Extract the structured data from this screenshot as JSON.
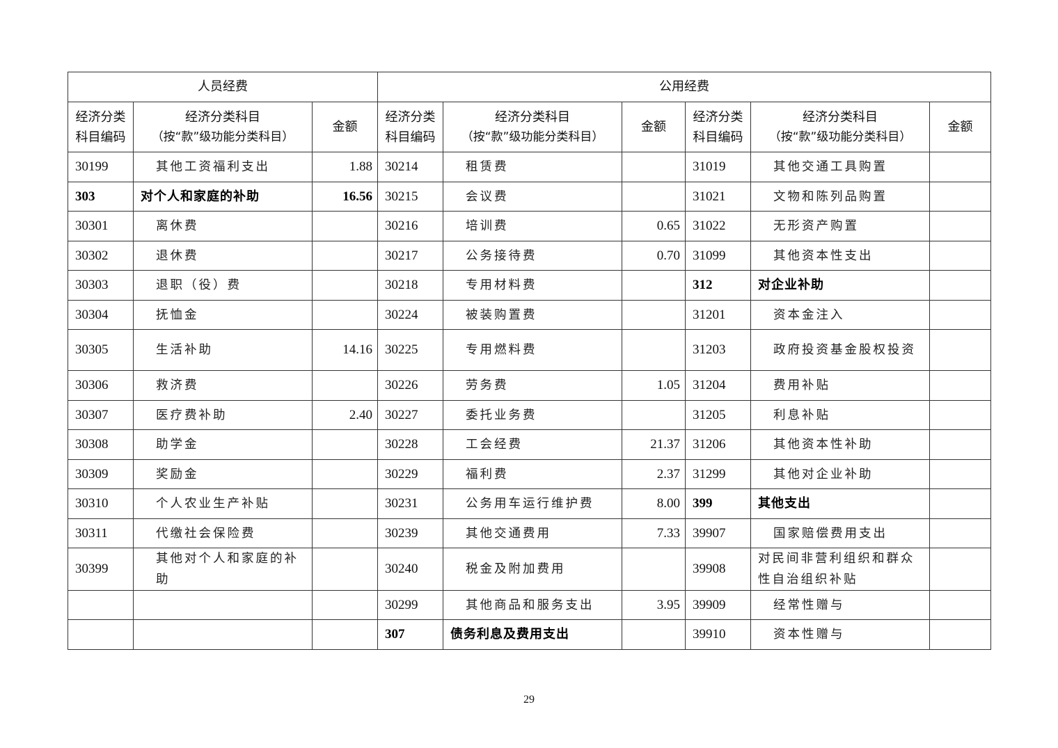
{
  "table": {
    "groups": [
      "人员经费",
      "公用经费"
    ],
    "headers": {
      "code": [
        "经济分类",
        "科目编码"
      ],
      "name": [
        "经济分类科目",
        "（按“款”级功能分类科目）"
      ],
      "amount": "金额"
    },
    "rows": [
      [
        [
          "30199",
          "其他工资福利支出",
          "1.88",
          false
        ],
        [
          "30214",
          "租赁费",
          "",
          false
        ],
        [
          "31019",
          "其他交通工具购置",
          "",
          false
        ]
      ],
      [
        [
          "303",
          "对个人和家庭的补助",
          "16.56",
          true
        ],
        [
          "30215",
          "会议费",
          "",
          false
        ],
        [
          "31021",
          "文物和陈列品购置",
          "",
          false
        ]
      ],
      [
        [
          "30301",
          "离休费",
          "",
          false
        ],
        [
          "30216",
          "培训费",
          "0.65",
          false
        ],
        [
          "31022",
          "无形资产购置",
          "",
          false
        ]
      ],
      [
        [
          "30302",
          "退休费",
          "",
          false
        ],
        [
          "30217",
          "公务接待费",
          "0.70",
          false
        ],
        [
          "31099",
          "其他资本性支出",
          "",
          false
        ]
      ],
      [
        [
          "30303",
          "退职（役）费",
          "",
          false
        ],
        [
          "30218",
          "专用材料费",
          "",
          false
        ],
        [
          "312",
          "对企业补助",
          "",
          true
        ]
      ],
      [
        [
          "30304",
          "抚恤金",
          "",
          false
        ],
        [
          "30224",
          "被装购置费",
          "",
          false
        ],
        [
          "31201",
          "资本金注入",
          "",
          false
        ]
      ],
      [
        [
          "30305",
          "生活补助",
          "14.16",
          false
        ],
        [
          "30225",
          "专用燃料费",
          "",
          false
        ],
        [
          "31203",
          "政府投资基金股权投资",
          "",
          false
        ]
      ],
      [
        [
          "30306",
          "救济费",
          "",
          false
        ],
        [
          "30226",
          "劳务费",
          "1.05",
          false
        ],
        [
          "31204",
          "费用补贴",
          "",
          false
        ]
      ],
      [
        [
          "30307",
          "医疗费补助",
          "2.40",
          false
        ],
        [
          "30227",
          "委托业务费",
          "",
          false
        ],
        [
          "31205",
          "利息补贴",
          "",
          false
        ]
      ],
      [
        [
          "30308",
          "助学金",
          "",
          false
        ],
        [
          "30228",
          "工会经费",
          "21.37",
          false
        ],
        [
          "31206",
          "其他资本性补助",
          "",
          false
        ]
      ],
      [
        [
          "30309",
          "奖励金",
          "",
          false
        ],
        [
          "30229",
          "福利费",
          "2.37",
          false
        ],
        [
          "31299",
          "其他对企业补助",
          "",
          false
        ]
      ],
      [
        [
          "30310",
          "个人农业生产补贴",
          "",
          false
        ],
        [
          "30231",
          "公务用车运行维护费",
          "8.00",
          false
        ],
        [
          "399",
          "其他支出",
          "",
          true
        ]
      ],
      [
        [
          "30311",
          "代缴社会保险费",
          "",
          false
        ],
        [
          "30239",
          "其他交通费用",
          "7.33",
          false
        ],
        [
          "39907",
          "国家赔偿费用支出",
          "",
          false
        ]
      ],
      [
        [
          "30399",
          "其他对个人和家庭的补助",
          "",
          false
        ],
        [
          "30240",
          "税金及附加费用",
          "",
          false
        ],
        [
          "39908",
          "对民间非营利组织和群众性自治组织补贴",
          "",
          false
        ]
      ],
      [
        [
          "",
          "",
          "",
          false
        ],
        [
          "30299",
          "其他商品和服务支出",
          "3.95",
          false
        ],
        [
          "39909",
          "经常性赠与",
          "",
          false
        ]
      ],
      [
        [
          "",
          "",
          "",
          false
        ],
        [
          "307",
          "债务利息及费用支出",
          "",
          true
        ],
        [
          "39910",
          "资本性赠与",
          "",
          false
        ]
      ]
    ]
  },
  "page_number": "29"
}
